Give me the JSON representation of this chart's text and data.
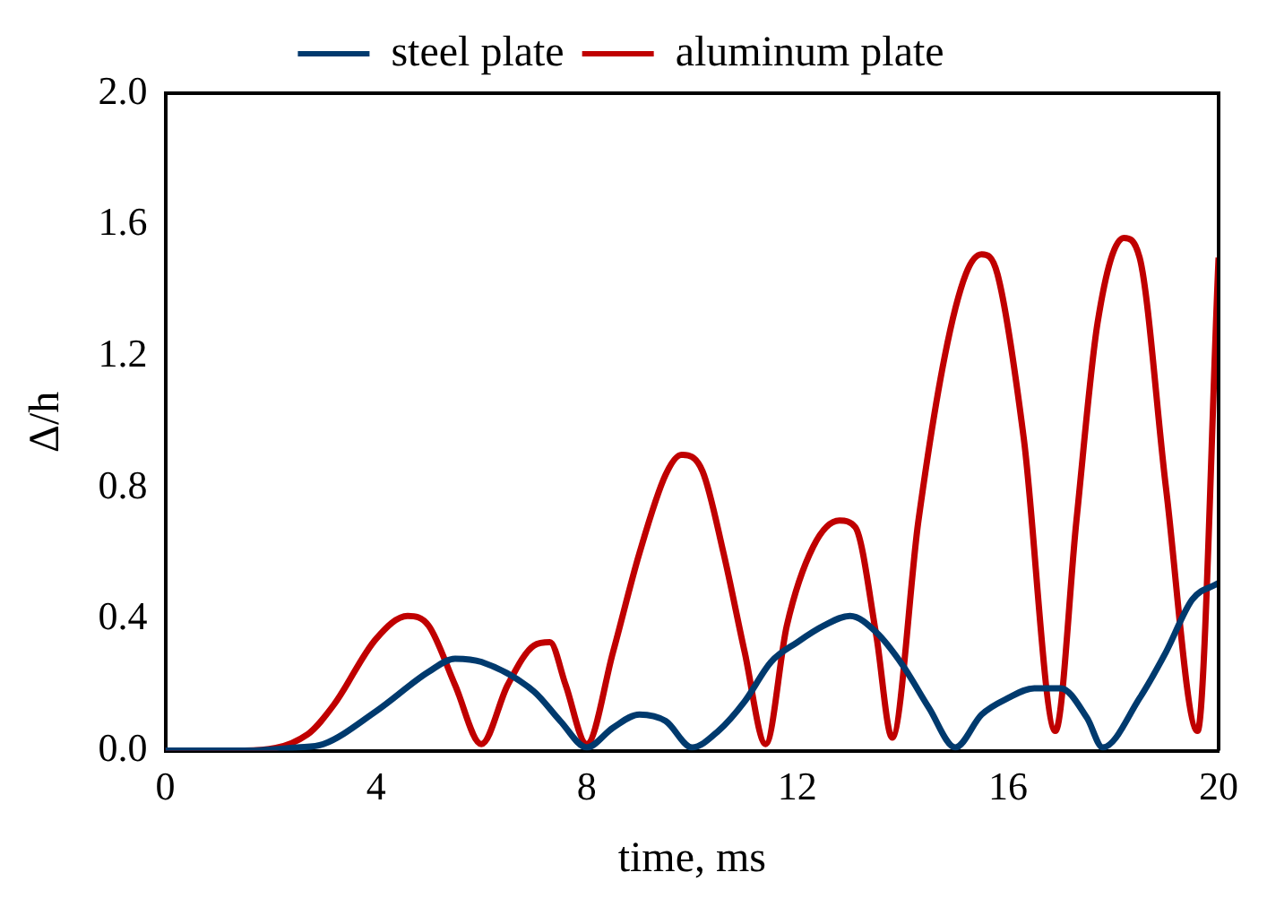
{
  "chart_data": {
    "type": "line",
    "xlabel": "time, ms",
    "ylabel": "Δ/h",
    "xlim": [
      0,
      20
    ],
    "xticks": [
      0,
      4,
      8,
      12,
      16,
      20
    ],
    "ylim": [
      0,
      2
    ],
    "yticks": [
      {
        "value": 0,
        "label": "0.0"
      },
      {
        "value": 0.4,
        "label": "0.4"
      },
      {
        "value": 0.8,
        "label": "0.8"
      },
      {
        "value": 1.2,
        "label": "1.2"
      },
      {
        "value": 1.6,
        "label": "1.6"
      },
      {
        "value": 2,
        "label": "2.0"
      }
    ],
    "grid": false,
    "legend": "top",
    "marker": "none",
    "line_style": "solid",
    "series": [
      {
        "name": "steel plate",
        "color": "#003a6e",
        "x": [
          0,
          1.5,
          2.5,
          3,
          4,
          5,
          5.5,
          6,
          7,
          7.5,
          8,
          8.5,
          9,
          9.5,
          10,
          10.5,
          11,
          11.5,
          12,
          12.5,
          13,
          13.5,
          14,
          14.5,
          15,
          15.5,
          16,
          16.5,
          17,
          17.5,
          17.8,
          18.5,
          19,
          19.5,
          20
        ],
        "values": [
          0,
          0,
          0.01,
          0.02,
          0.12,
          0.24,
          0.28,
          0.27,
          0.18,
          0.09,
          0.01,
          0.07,
          0.11,
          0.09,
          0.01,
          0.06,
          0.15,
          0.27,
          0.33,
          0.38,
          0.41,
          0.36,
          0.26,
          0.13,
          0.01,
          0.11,
          0.16,
          0.19,
          0.19,
          0.1,
          0.01,
          0.16,
          0.3,
          0.46,
          0.51
        ]
      },
      {
        "name": "aluminum plate",
        "color": "#c00000",
        "x": [
          0,
          1.5,
          2.7,
          3.2,
          4,
          4.6,
          5,
          5.5,
          6,
          6.5,
          7,
          7.3,
          7.6,
          8,
          8.5,
          9,
          9.5,
          9.8,
          10.2,
          10.6,
          11,
          11.4,
          11.8,
          12.3,
          12.8,
          13.1,
          13.5,
          13.8,
          14.3,
          14.8,
          15.2,
          15.5,
          15.8,
          16.3,
          16.9,
          17.3,
          17.7,
          18.2,
          18.5,
          19,
          19.6,
          20
        ],
        "values": [
          0,
          0,
          0.05,
          0.14,
          0.34,
          0.41,
          0.38,
          0.2,
          0.02,
          0.2,
          0.32,
          0.33,
          0.2,
          0.02,
          0.3,
          0.6,
          0.84,
          0.9,
          0.85,
          0.6,
          0.3,
          0.02,
          0.38,
          0.62,
          0.7,
          0.68,
          0.35,
          0.04,
          0.7,
          1.2,
          1.45,
          1.51,
          1.45,
          0.95,
          0.06,
          0.7,
          1.3,
          1.56,
          1.5,
          0.8,
          0.06,
          1.5
        ]
      }
    ]
  }
}
